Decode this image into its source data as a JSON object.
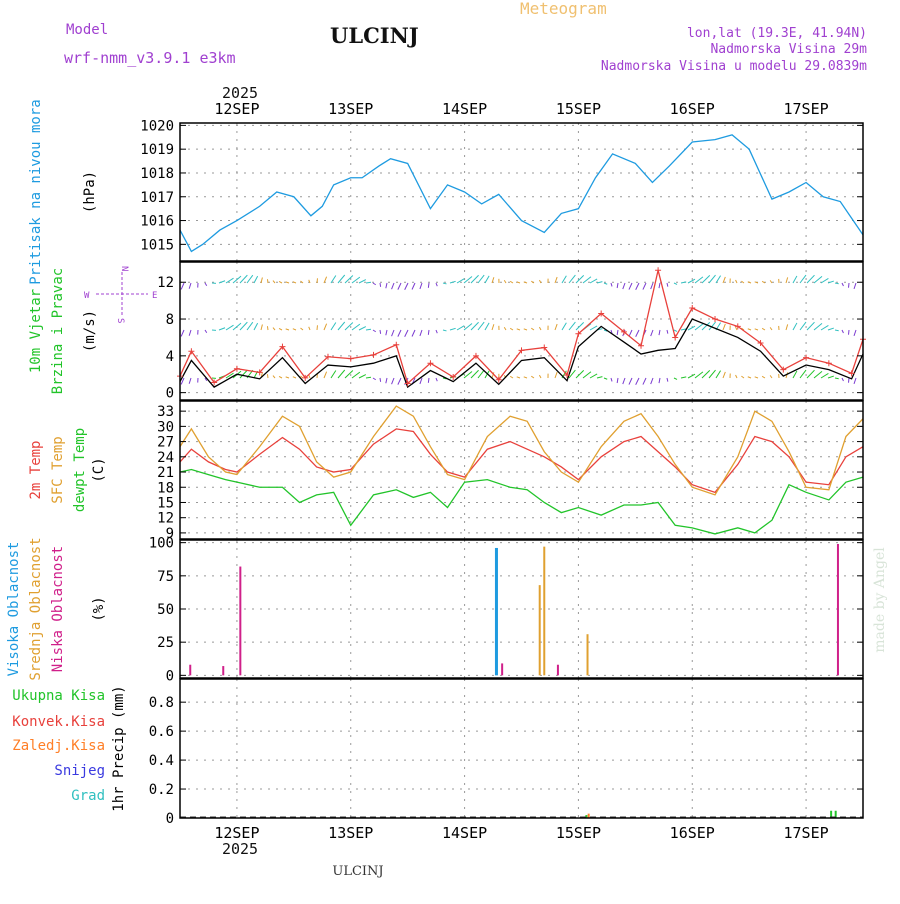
{
  "header": {
    "model_label": "Model",
    "model_value": "wrf-nmm_v3.9.1  e3km",
    "title": "ULCINJ",
    "subtitle": "Meteogram",
    "lonlat": "lon,lat (19.3E, 41.94N)",
    "elevation": "Nadmorska Visina 29m",
    "model_elevation": "Nadmorska Visina u modelu 29.0839m",
    "watermark": "made by Angel",
    "footer": "ULCINJ"
  },
  "colors": {
    "pressure": "#1e9be0",
    "temp2m": "#e8413c",
    "sfc": "#e0a030",
    "dewpt": "#22c42a",
    "wind_mean": "#000000",
    "gust": "#e8413c",
    "cloud_high": "#1e9be0",
    "cloud_mid": "#e0a030",
    "cloud_low": "#d0208a",
    "precip_total": "#22c42a",
    "precip_conv": "#e8413c",
    "precip_frz": "#ff7f27",
    "snow": "#3a3ae0",
    "hail": "#30c0c0"
  },
  "chart_data": [
    {
      "type": "line",
      "name": "pressure",
      "ylabel_lines": [
        "Pritisak na nivou mora"
      ],
      "unit": "(hPa)",
      "ylim": [
        1014.3,
        1020.1
      ],
      "yticks": [
        1015,
        1016,
        1017,
        1018,
        1019,
        1020
      ],
      "x_days": [
        11.5,
        11.6,
        11.7,
        11.85,
        12.0,
        12.2,
        12.35,
        12.5,
        12.65,
        12.75,
        12.85,
        13.0,
        13.1,
        13.25,
        13.35,
        13.5,
        13.7,
        13.85,
        14.0,
        14.15,
        14.3,
        14.5,
        14.7,
        14.85,
        15.0,
        15.15,
        15.3,
        15.5,
        15.65,
        15.8,
        16.0,
        16.2,
        16.35,
        16.5,
        16.7,
        16.85,
        17.0,
        17.15,
        17.3,
        17.5
      ],
      "series": [
        {
          "name": "MSLP",
          "color_key": "pressure",
          "values": [
            1015.6,
            1014.7,
            1015.0,
            1015.6,
            1016.0,
            1016.6,
            1017.2,
            1017.0,
            1016.2,
            1016.6,
            1017.5,
            1017.8,
            1017.8,
            1018.3,
            1018.6,
            1018.4,
            1016.5,
            1017.5,
            1017.2,
            1016.7,
            1017.1,
            1016.0,
            1015.5,
            1016.3,
            1016.5,
            1017.8,
            1018.8,
            1018.4,
            1017.6,
            1018.3,
            1019.3,
            1019.4,
            1019.6,
            1019.0,
            1016.9,
            1017.2,
            1017.6,
            1017.0,
            1016.8,
            1015.4
          ]
        }
      ]
    },
    {
      "type": "line",
      "name": "wind",
      "ylabel_lines": [
        "10m Vjetar",
        "Brzina i Pravac"
      ],
      "unit": "(m/s)",
      "ylim": [
        -0.8,
        14.2
      ],
      "yticks": [
        0,
        4,
        8,
        12
      ],
      "compass": [
        "N",
        "E",
        "W",
        "S"
      ],
      "x_days": [
        11.5,
        11.6,
        11.8,
        12.0,
        12.2,
        12.4,
        12.6,
        12.8,
        13.0,
        13.2,
        13.4,
        13.5,
        13.7,
        13.9,
        14.1,
        14.3,
        14.5,
        14.7,
        14.9,
        15.0,
        15.2,
        15.4,
        15.55,
        15.7,
        15.85,
        16.0,
        16.2,
        16.4,
        16.6,
        16.8,
        17.0,
        17.2,
        17.4,
        17.5
      ],
      "series": [
        {
          "name": "mean wind",
          "color_key": "wind_mean",
          "values": [
            1.2,
            3.5,
            0.6,
            2.0,
            1.5,
            3.8,
            1.0,
            3.0,
            2.8,
            3.2,
            4.0,
            0.6,
            2.4,
            1.2,
            3.2,
            0.9,
            3.5,
            3.8,
            1.3,
            5.0,
            7.2,
            5.5,
            4.2,
            4.6,
            4.8,
            8.0,
            7.0,
            6.0,
            4.5,
            1.8,
            3.0,
            2.5,
            1.5,
            4.2
          ]
        },
        {
          "name": "gust",
          "color_key": "gust",
          "values": [
            1.8,
            4.5,
            1.1,
            2.6,
            2.2,
            5.0,
            1.6,
            3.9,
            3.7,
            4.1,
            5.2,
            1.0,
            3.2,
            1.7,
            4.0,
            1.4,
            4.6,
            4.9,
            1.9,
            6.4,
            8.6,
            6.6,
            5.1,
            13.3,
            6.0,
            9.2,
            8.0,
            7.2,
            5.4,
            2.5,
            3.8,
            3.2,
            2.1,
            5.8
          ]
        }
      ]
    },
    {
      "type": "line",
      "name": "temperature",
      "ylabel_lines": [
        "2m Temp",
        "SFC Temp",
        "dewpt Temp"
      ],
      "unit": "(C)",
      "ylim": [
        7.8,
        35.0
      ],
      "yticks": [
        9,
        12,
        15,
        18,
        21,
        24,
        27,
        30,
        33
      ],
      "x_days": [
        11.5,
        11.6,
        11.75,
        11.9,
        12.0,
        12.2,
        12.4,
        12.55,
        12.7,
        12.85,
        13.0,
        13.2,
        13.4,
        13.55,
        13.7,
        13.85,
        14.0,
        14.2,
        14.4,
        14.55,
        14.7,
        14.85,
        15.0,
        15.2,
        15.4,
        15.55,
        15.7,
        15.85,
        16.0,
        16.2,
        16.4,
        16.55,
        16.7,
        16.85,
        17.0,
        17.2,
        17.35,
        17.5
      ],
      "series": [
        {
          "name": "2m Temp",
          "color_key": "temp2m",
          "values": [
            23.0,
            25.5,
            23.0,
            21.5,
            21.0,
            24.5,
            27.8,
            25.5,
            22.0,
            21.0,
            21.5,
            26.5,
            29.5,
            29.0,
            24.5,
            21.0,
            20.0,
            25.5,
            27.0,
            25.5,
            24.0,
            22.0,
            19.5,
            24.0,
            27.0,
            28.0,
            25.0,
            22.0,
            18.5,
            17.0,
            22.5,
            28.0,
            27.0,
            24.0,
            19.0,
            18.5,
            24.0,
            26.0
          ]
        },
        {
          "name": "SFC Temp",
          "color_key": "sfc",
          "values": [
            26.0,
            29.5,
            24.0,
            21.0,
            20.5,
            26.0,
            32.0,
            30.0,
            23.0,
            20.0,
            21.0,
            28.0,
            34.0,
            32.0,
            26.0,
            20.5,
            19.5,
            28.0,
            32.0,
            31.0,
            25.0,
            21.0,
            19.0,
            26.0,
            31.0,
            32.5,
            28.0,
            22.5,
            18.0,
            16.5,
            24.0,
            33.0,
            31.0,
            25.0,
            18.0,
            17.5,
            28.0,
            31.5
          ]
        },
        {
          "name": "dewpt Temp",
          "color_key": "dewpt",
          "values": [
            21.0,
            21.5,
            20.5,
            19.5,
            19.0,
            18.0,
            18.0,
            15.0,
            16.5,
            17.0,
            10.5,
            16.5,
            17.5,
            16.0,
            17.0,
            14.0,
            19.0,
            19.5,
            18.0,
            17.5,
            15.0,
            13.0,
            14.0,
            12.5,
            14.5,
            14.5,
            15.0,
            10.5,
            10.0,
            8.8,
            10.0,
            9.0,
            11.5,
            18.5,
            17.0,
            15.5,
            19.0,
            20.0
          ]
        }
      ]
    },
    {
      "type": "bar",
      "name": "clouds",
      "ylabel_lines": [
        "Visoka Oblacnost",
        "Srednja Oblacnost",
        "Niska Oblacnost"
      ],
      "unit": "(%)",
      "ylim": [
        -2,
        102
      ],
      "yticks": [
        0,
        25,
        50,
        75,
        100
      ],
      "series": [
        {
          "name": "Visoka Oblacnost",
          "color_key": "cloud_high",
          "x_days": [
            14.28
          ],
          "values": [
            96
          ]
        },
        {
          "name": "Srednja Oblacnost",
          "color_key": "cloud_mid",
          "x_days": [
            14.66,
            14.7,
            15.08
          ],
          "values": [
            68,
            97,
            31
          ]
        },
        {
          "name": "Niska Oblacnost",
          "color_key": "cloud_low",
          "x_days": [
            11.59,
            11.88,
            12.03,
            14.33,
            14.82,
            17.28
          ],
          "values": [
            8,
            7,
            82,
            9,
            8,
            99
          ]
        }
      ]
    },
    {
      "type": "bar",
      "name": "precip",
      "ylabel_lines": [
        "Ukupna Kisa",
        "Konvek.Kisa",
        "Zaledj.Kisa",
        "Snijeg",
        "Grad"
      ],
      "unit": "1hr Precip (mm)",
      "ylim": [
        0,
        0.96
      ],
      "yticks": [
        0,
        0.2,
        0.4,
        0.6,
        0.8
      ],
      "series": [
        {
          "name": "Ukupna Kisa",
          "color_key": "precip_total",
          "x_days": [
            14.85,
            15.07,
            17.22,
            17.26
          ],
          "values": [
            0.01,
            0.02,
            0.05,
            0.05
          ]
        },
        {
          "name": "Zaledj.Kisa",
          "color_key": "precip_frz",
          "x_days": [
            15.09
          ],
          "values": [
            0.03
          ]
        }
      ]
    }
  ],
  "x_axis": {
    "start_day": 11.5,
    "end_day": 17.5,
    "ticks": [
      {
        "day": 12,
        "label": "12SEP"
      },
      {
        "day": 13,
        "label": "13SEP"
      },
      {
        "day": 14,
        "label": "14SEP"
      },
      {
        "day": 15,
        "label": "15SEP"
      },
      {
        "day": 16,
        "label": "16SEP"
      },
      {
        "day": 17,
        "label": "17SEP"
      }
    ],
    "year": "2025"
  }
}
